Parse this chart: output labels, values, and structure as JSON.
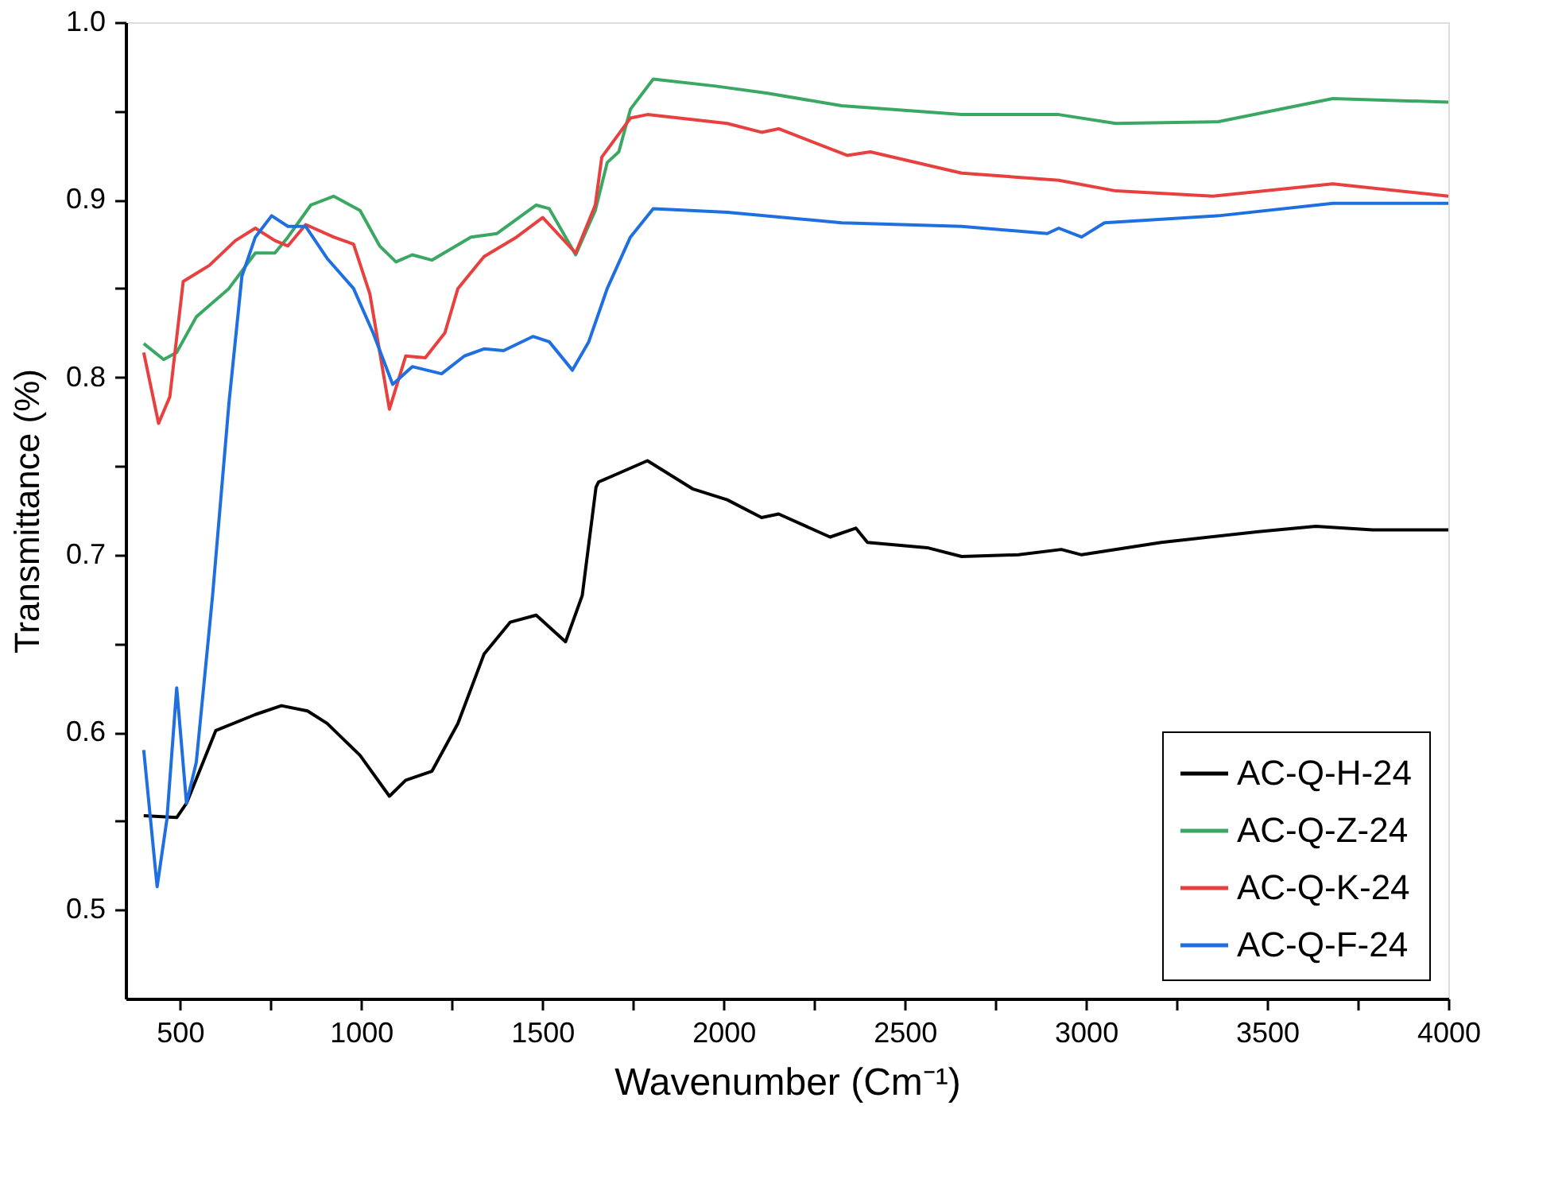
{
  "chart_data": {
    "type": "line",
    "xlabel": "Wavenumber (Cm⁻¹)",
    "ylabel": "Transmittance (%)",
    "xlim": [
      350,
      4000
    ],
    "ylim": [
      0.45,
      1.0
    ],
    "xticks": [
      500,
      {
        "value": 750,
        "label": null
      },
      1000,
      {
        "value": 1250,
        "label": null
      },
      1500,
      {
        "value": 1750,
        "label": null
      },
      2000,
      {
        "value": 2250,
        "label": null
      },
      2500,
      {
        "value": 2750,
        "label": null
      },
      3000,
      {
        "value": 3250,
        "label": null
      },
      3500,
      {
        "value": 3750,
        "label": null
      },
      4000
    ],
    "yticks": [
      0.5,
      {
        "value": 0.55,
        "label": null
      },
      0.6,
      {
        "value": 0.65,
        "label": null
      },
      0.7,
      {
        "value": 0.75,
        "label": null
      },
      0.8,
      {
        "value": 0.85,
        "label": null
      },
      0.9,
      {
        "value": 0.95,
        "label": null
      },
      {
        "value": 1.0,
        "label": "1.0"
      }
    ],
    "grid": false,
    "legend": "bottom right",
    "marker": "none",
    "line_style": "solid",
    "series": [
      {
        "name": "AC-Q-H-24",
        "color": "#000000",
        "x": [
          400,
          491,
          518,
          599,
          708,
          780,
          852,
          906,
          997,
          1078,
          1123,
          1195,
          1267,
          1339,
          1411,
          1483,
          1564,
          1610,
          1648,
          1655,
          1790,
          1916,
          2010,
          2105,
          2152,
          2294,
          2365,
          2397,
          2562,
          2657,
          2814,
          2932,
          2988,
          3208,
          3476,
          3634,
          3791,
          4000
        ],
        "values": [
          0.553,
          0.552,
          0.56,
          0.601,
          0.61,
          0.615,
          0.612,
          0.605,
          0.587,
          0.564,
          0.573,
          0.578,
          0.605,
          0.644,
          0.662,
          0.666,
          0.651,
          0.677,
          0.738,
          0.741,
          0.753,
          0.737,
          0.731,
          0.721,
          0.723,
          0.71,
          0.715,
          0.707,
          0.704,
          0.699,
          0.7,
          0.703,
          0.7,
          0.707,
          0.713,
          0.716,
          0.714,
          0.714
        ]
      },
      {
        "name": "AC-Q-Z-24",
        "color": "#3aa863",
        "x": [
          400,
          455,
          491,
          545,
          635,
          708,
          762,
          798,
          861,
          924,
          997,
          1051,
          1096,
          1141,
          1195,
          1303,
          1375,
          1483,
          1519,
          1592,
          1646,
          1679,
          1711,
          1743,
          1806,
          1979,
          2121,
          2326,
          2657,
          2925,
          3082,
          3366,
          3681,
          4000
        ],
        "values": [
          0.819,
          0.81,
          0.814,
          0.834,
          0.85,
          0.87,
          0.87,
          0.879,
          0.897,
          0.902,
          0.894,
          0.874,
          0.865,
          0.869,
          0.866,
          0.879,
          0.881,
          0.897,
          0.895,
          0.869,
          0.894,
          0.921,
          0.927,
          0.951,
          0.968,
          0.964,
          0.96,
          0.953,
          0.948,
          0.948,
          0.943,
          0.944,
          0.957,
          0.955
        ]
      },
      {
        "name": "AC-Q-K-24",
        "color": "#e8403f",
        "x": [
          400,
          441,
          472,
          509,
          581,
          653,
          708,
          762,
          798,
          847,
          924,
          979,
          1024,
          1078,
          1123,
          1177,
          1231,
          1267,
          1339,
          1429,
          1501,
          1592,
          1646,
          1664,
          1743,
          1790,
          2010,
          2105,
          2152,
          2341,
          2405,
          2657,
          2925,
          3082,
          3350,
          3681,
          4000
        ],
        "values": [
          0.814,
          0.774,
          0.789,
          0.854,
          0.863,
          0.877,
          0.884,
          0.877,
          0.874,
          0.886,
          0.879,
          0.875,
          0.847,
          0.782,
          0.812,
          0.811,
          0.825,
          0.85,
          0.868,
          0.879,
          0.89,
          0.87,
          0.897,
          0.924,
          0.946,
          0.948,
          0.943,
          0.938,
          0.94,
          0.925,
          0.927,
          0.915,
          0.911,
          0.905,
          0.902,
          0.909,
          0.902
        ]
      },
      {
        "name": "AC-Q-F-24",
        "color": "#1f6fe0",
        "x": [
          400,
          437,
          464,
          491,
          518,
          545,
          590,
          635,
          671,
          708,
          753,
          798,
          847,
          906,
          979,
          1033,
          1087,
          1141,
          1222,
          1285,
          1339,
          1393,
          1474,
          1519,
          1583,
          1628,
          1679,
          1743,
          1806,
          2010,
          2326,
          2657,
          2893,
          2925,
          2988,
          3051,
          3366,
          3681,
          4000
        ],
        "values": [
          0.59,
          0.513,
          0.551,
          0.625,
          0.56,
          0.583,
          0.677,
          0.785,
          0.857,
          0.879,
          0.891,
          0.885,
          0.885,
          0.867,
          0.85,
          0.825,
          0.796,
          0.806,
          0.802,
          0.812,
          0.816,
          0.815,
          0.823,
          0.82,
          0.804,
          0.82,
          0.85,
          0.879,
          0.895,
          0.893,
          0.887,
          0.885,
          0.881,
          0.884,
          0.879,
          0.887,
          0.891,
          0.898,
          0.898
        ]
      }
    ]
  }
}
